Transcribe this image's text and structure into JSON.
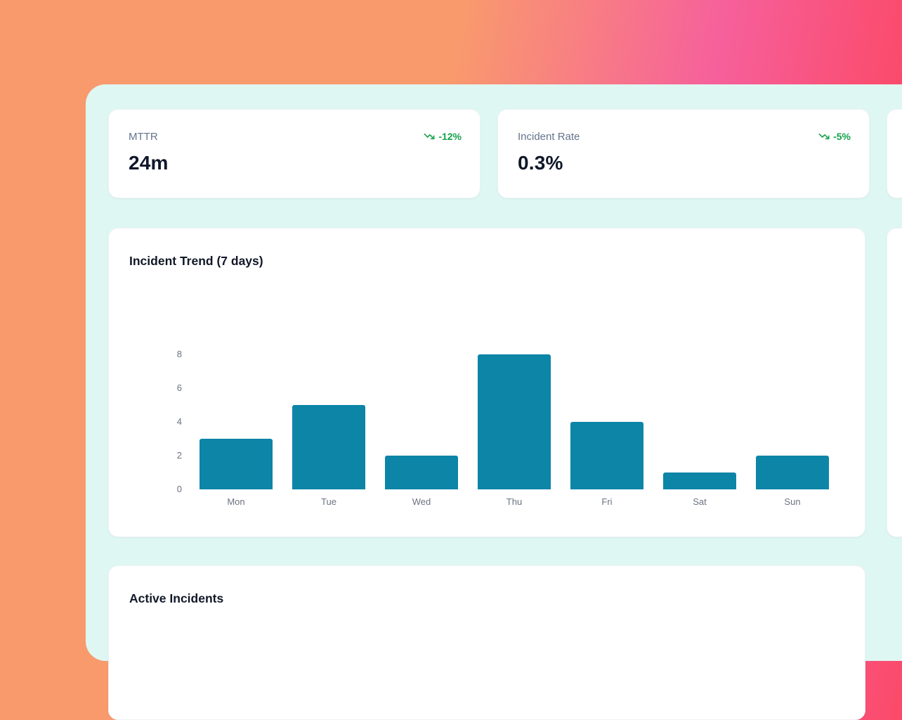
{
  "colors": {
    "delta_green": "#16a34a",
    "bar_teal": "#0c85a7",
    "label_gray": "#64748b",
    "value_dark": "#0f172a",
    "panel_mint": "#dff7f2",
    "bg_orange": "#f99a6d",
    "bg_pink": "#f6609b",
    "bg_red": "#fd4053"
  },
  "kpi_cards": [
    {
      "label": "MTTR",
      "value": "24m",
      "delta": "-12%",
      "delta_icon": "trending-down-icon"
    },
    {
      "label": "Incident Rate",
      "value": "0.3%",
      "delta": "-5%",
      "delta_icon": "trending-down-icon"
    }
  ],
  "chart_data": {
    "type": "bar",
    "title": "Incident Trend (7 days)",
    "categories": [
      "Mon",
      "Tue",
      "Wed",
      "Thu",
      "Fri",
      "Sat",
      "Sun"
    ],
    "values": [
      3,
      5,
      2,
      8,
      4,
      1,
      2
    ],
    "xlabel": "",
    "ylabel": "",
    "ylim": [
      0,
      8
    ],
    "yticks": [
      0,
      2,
      4,
      6,
      8
    ],
    "bar_color": "#0c85a7",
    "grid": false,
    "legend_position": "none"
  },
  "sections": {
    "active_incidents_title": "Active Incidents"
  }
}
